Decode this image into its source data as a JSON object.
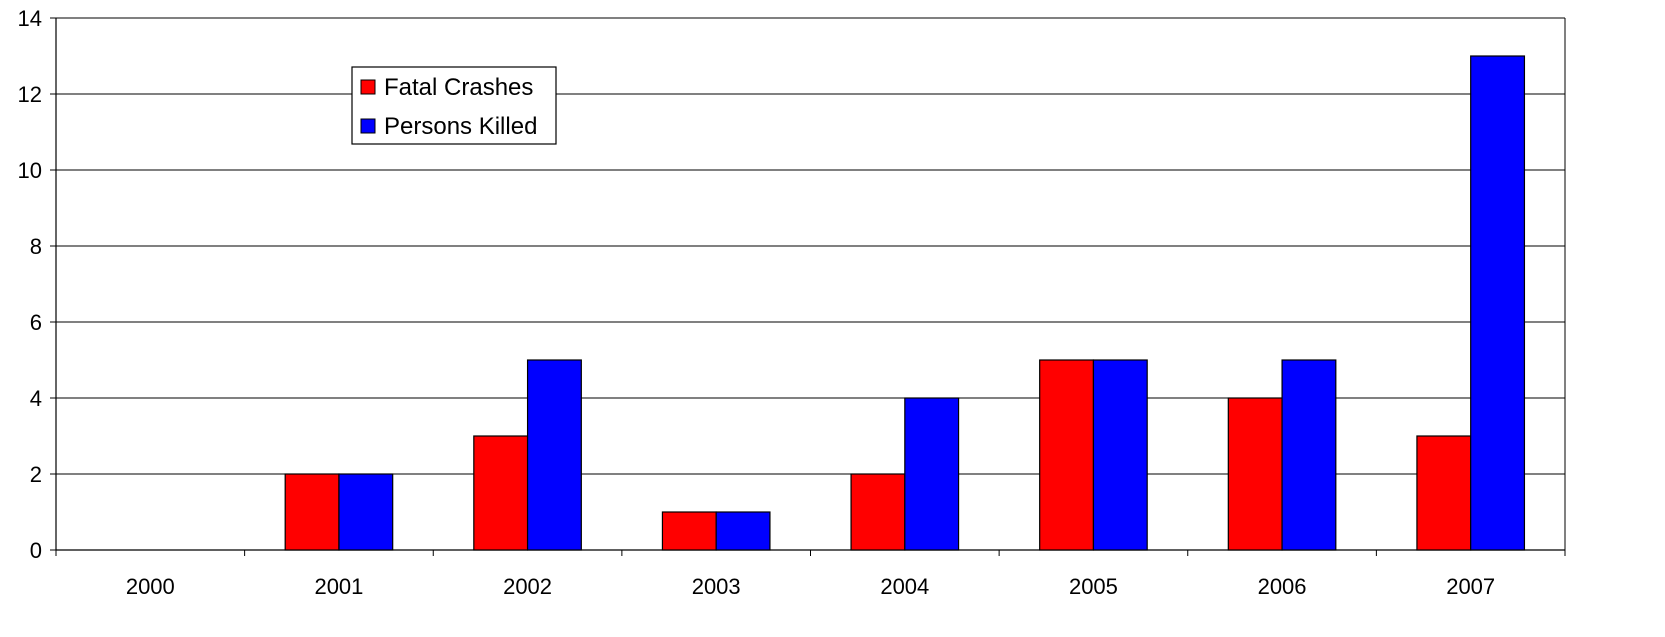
{
  "chart_data": {
    "type": "bar",
    "categories": [
      "2000",
      "2001",
      "2002",
      "2003",
      "2004",
      "2005",
      "2006",
      "2007"
    ],
    "series": [
      {
        "name": "Fatal Crashes",
        "color": "#ff0000",
        "values": [
          0,
          2,
          3,
          1,
          2,
          5,
          4,
          3
        ]
      },
      {
        "name": "Persons Killed",
        "color": "#0000ff",
        "values": [
          0,
          2,
          5,
          1,
          4,
          5,
          5,
          13
        ]
      }
    ],
    "y_ticks": [
      "0",
      "2",
      "4",
      "6",
      "8",
      "10",
      "12",
      "14"
    ],
    "ylim": [
      0,
      14
    ],
    "title": "",
    "xlabel": "",
    "ylabel": "",
    "grid": true,
    "legend_position": "top-left"
  }
}
